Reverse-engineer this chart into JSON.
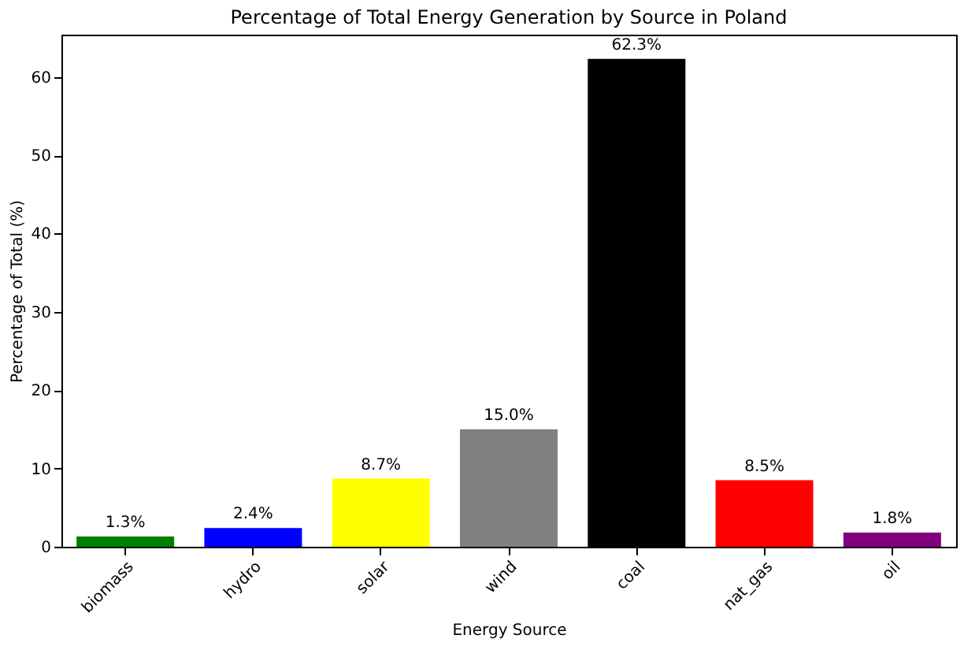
{
  "chart_data": {
    "type": "bar",
    "title": "Percentage of Total Energy Generation by Source in Poland",
    "xlabel": "Energy Source",
    "ylabel": "Percentage of Total (%)",
    "categories": [
      "biomass",
      "hydro",
      "solar",
      "wind",
      "coal",
      "nat_gas",
      "oil"
    ],
    "values": [
      1.3,
      2.4,
      8.7,
      15.0,
      62.3,
      8.5,
      1.8
    ],
    "colors": [
      "#008000",
      "#0000ff",
      "#ffff00",
      "#808080",
      "#000000",
      "#ff0000",
      "#800080"
    ],
    "value_labels": [
      "1.3%",
      "2.4%",
      "8.7%",
      "15.0%",
      "62.3%",
      "8.5%",
      "1.8%"
    ],
    "ylim": [
      0,
      65.4
    ],
    "yticks": [
      0,
      10,
      20,
      30,
      40,
      50,
      60
    ],
    "grid": false,
    "legend": false
  }
}
